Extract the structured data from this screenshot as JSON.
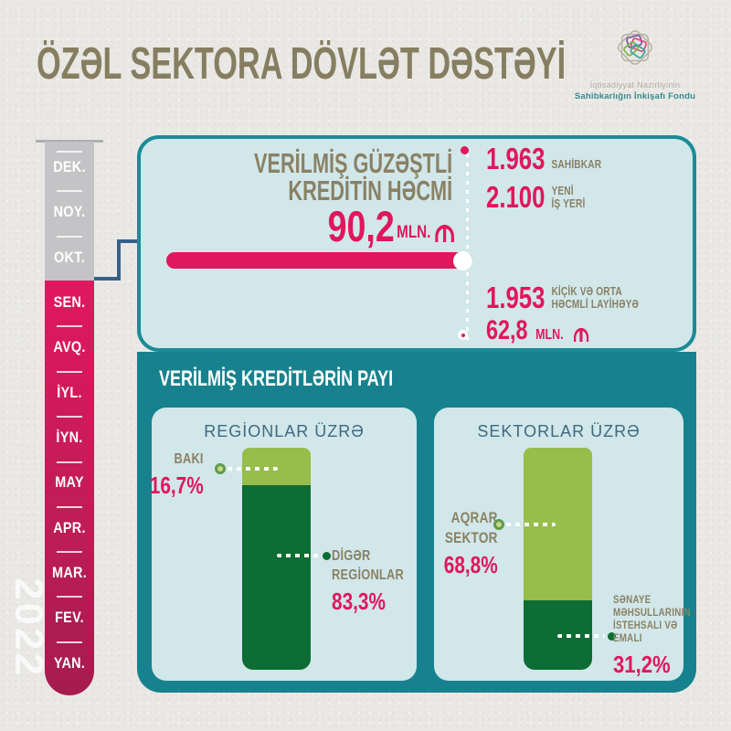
{
  "page": {
    "title": "ÖZƏL SEKTORA DÖVLƏT DƏSTƏYİ",
    "year_watermark": "2022"
  },
  "logo": {
    "line1": "İqtisadiyyat Nazirliyinin",
    "line2": "Sahibkarlığın İnkişafı Fondu"
  },
  "timeline": {
    "months": [
      {
        "label": "DEK.",
        "state": "inactive"
      },
      {
        "label": "NOY.",
        "state": "inactive"
      },
      {
        "label": "OKT.",
        "state": "inactive"
      },
      {
        "label": "SEN.",
        "state": "active"
      },
      {
        "label": "AVQ.",
        "state": "active"
      },
      {
        "label": "İYL.",
        "state": "active"
      },
      {
        "label": "İYN.",
        "state": "active"
      },
      {
        "label": "MAY",
        "state": "active"
      },
      {
        "label": "APR.",
        "state": "active"
      },
      {
        "label": "MAR.",
        "state": "active"
      },
      {
        "label": "FEV.",
        "state": "active"
      },
      {
        "label": "YAN.",
        "state": "active"
      }
    ]
  },
  "summary": {
    "title_lines": [
      "VERİLMİŞ GÜZƏŞTLİ",
      "KREDİTİN HƏCMİ"
    ],
    "amount_value": "90,2",
    "amount_unit": "MLN.",
    "currency": "₼",
    "stats": [
      {
        "value": "1.963",
        "label_lines": [
          "SAHİBKAR"
        ]
      },
      {
        "value": "2.100",
        "label_lines": [
          "YENİ",
          "İŞ YERİ"
        ]
      },
      {
        "value": "1.953",
        "label_lines": [
          "KİÇİK VƏ ORTA",
          "HƏCMLİ LAYİHƏYƏ"
        ]
      },
      {
        "value": "62,8",
        "unit": "MLN.",
        "currency": "₼",
        "label_lines": []
      }
    ]
  },
  "credits": {
    "section_title": "VERİLMİŞ KREDİTLƏRİN PAYI",
    "charts": [
      {
        "title": "REGİONLAR ÜZRƏ",
        "segments": [
          {
            "label_lines": [
              "BAKI"
            ],
            "percent": "16,7%"
          },
          {
            "label_lines": [
              "DİGƏR",
              "REGİONLAR"
            ],
            "percent": "83,3%"
          }
        ]
      },
      {
        "title": "SEKTORLAR ÜZRƏ",
        "segments": [
          {
            "label_lines": [
              "AQRAR",
              "SEKTOR"
            ],
            "percent": "68,8%"
          },
          {
            "label_lines": [
              "SƏNAYE",
              "MƏHSULLARININ",
              "İSTEHSALI VƏ",
              "EMALI"
            ],
            "percent": "31,2%"
          }
        ]
      }
    ]
  },
  "chart_data": [
    {
      "type": "bar",
      "stacked": true,
      "title": "REGİONLAR ÜZRƏ",
      "unit": "%",
      "ylim": [
        0,
        100
      ],
      "series": [
        {
          "name": "BAKI",
          "values": [
            16.7
          ],
          "color": "#97bd4b"
        },
        {
          "name": "DİGƏR REGİONLAR",
          "values": [
            83.3
          ],
          "color": "#0d6d34"
        }
      ]
    },
    {
      "type": "bar",
      "stacked": true,
      "title": "SEKTORLAR ÜZRƏ",
      "unit": "%",
      "ylim": [
        0,
        100
      ],
      "series": [
        {
          "name": "AQRAR SEKTOR",
          "values": [
            68.8
          ],
          "color": "#97bd4b"
        },
        {
          "name": "SƏNAYE MƏHSULLARININ İSTEHSALI VƏ EMALI",
          "values": [
            31.2
          ],
          "color": "#0d6d34"
        }
      ]
    }
  ],
  "colors": {
    "accent_pink": "#e0175c",
    "teal_band": "#17828e",
    "light_card": "#d1e7ea",
    "olive_text": "#8a8164",
    "navy_connector": "#34618c",
    "light_green": "#97bd4b",
    "dark_green": "#0d6d34",
    "gray_inactive": "#c4c4c6"
  }
}
